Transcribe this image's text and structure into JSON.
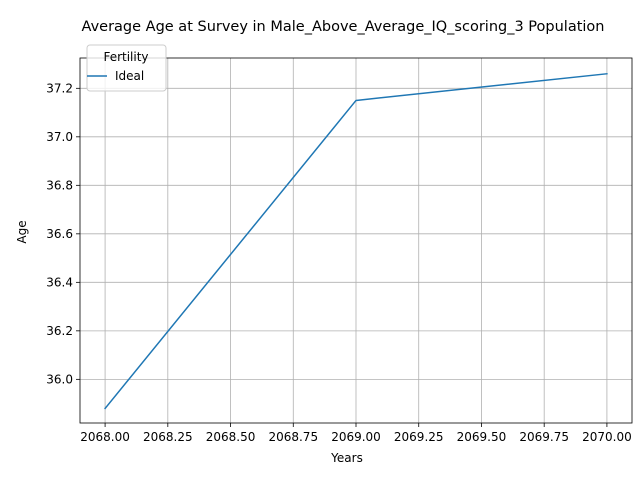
{
  "chart_data": {
    "type": "line",
    "title": "Average Age at Survey in Male_Above_Average_IQ_scoring_3 Population",
    "xlabel": "Years",
    "ylabel": "Age",
    "xlim": [
      2067.9,
      2070.1
    ],
    "ylim": [
      35.82,
      37.325
    ],
    "x_ticks": [
      "2068.00",
      "2068.25",
      "2068.50",
      "2068.75",
      "2069.00",
      "2069.25",
      "2069.50",
      "2069.75",
      "2070.00"
    ],
    "x_tick_values": [
      2068.0,
      2068.25,
      2068.5,
      2068.75,
      2069.0,
      2069.25,
      2069.5,
      2069.75,
      2070.0
    ],
    "y_ticks": [
      "36.0",
      "36.2",
      "36.4",
      "36.6",
      "36.8",
      "37.0",
      "37.2"
    ],
    "y_tick_values": [
      36.0,
      36.2,
      36.4,
      36.6,
      36.8,
      37.0,
      37.2
    ],
    "grid": true,
    "legend": {
      "title": "Fertility",
      "placement": "top-left"
    },
    "series": [
      {
        "name": "Ideal",
        "color": "#1f77b4",
        "x": [
          2068,
          2069,
          2070
        ],
        "y": [
          35.88,
          37.15,
          37.26
        ]
      }
    ]
  }
}
